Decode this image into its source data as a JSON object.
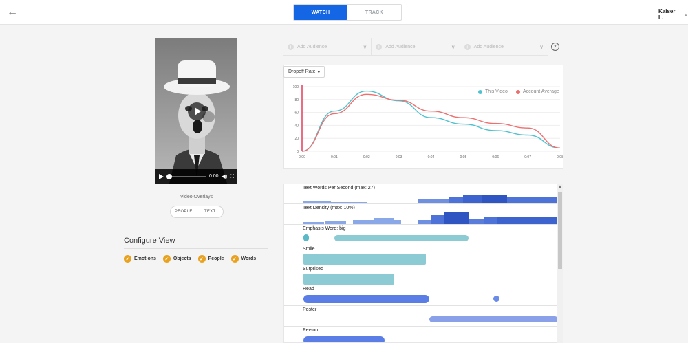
{
  "header": {
    "back_icon": "arrow-left-icon",
    "tabs": [
      "WATCH",
      "TRACK"
    ],
    "active_tab": "WATCH",
    "user_name": "Kaiser L."
  },
  "video": {
    "time": "0:00",
    "progress": 0
  },
  "overlays": {
    "label": "Video Overlays",
    "options": [
      "PEOPLE",
      "TEXT"
    ]
  },
  "configure": {
    "title": "Configure View",
    "options": [
      "Emotions",
      "Objects",
      "People",
      "Words"
    ]
  },
  "audience": {
    "placeholders": [
      "Add Audience",
      "Add Audience",
      "Add Audience"
    ]
  },
  "metric_select": "Dropoff Rate",
  "chart_data": {
    "type": "line",
    "x": [
      "0:00",
      "0:01",
      "0:02",
      "0:03",
      "0:04",
      "0:05",
      "0:06",
      "0:07",
      "0:08"
    ],
    "yticks": [
      0,
      20,
      40,
      60,
      80,
      100
    ],
    "ylim": [
      0,
      100
    ],
    "series": [
      {
        "name": "This Video",
        "color": "#4fc2d0",
        "values": [
          0,
          62,
          93,
          78,
          52,
          42,
          32,
          25,
          5
        ]
      },
      {
        "name": "Account Average",
        "color": "#ef6f6f",
        "values": [
          0,
          58,
          88,
          79,
          62,
          52,
          43,
          36,
          5
        ]
      }
    ],
    "legend_position": "top-right"
  },
  "timeline": {
    "tracks": [
      {
        "label": "Text Words Per Second (max: 27)",
        "kind": "histogram"
      },
      {
        "label": "Text Density (max: 10%)",
        "kind": "histogram"
      },
      {
        "label": "Emphasis Word: big",
        "kind": "teal"
      },
      {
        "label": "Smile",
        "kind": "teal-block"
      },
      {
        "label": "Surprised",
        "kind": "teal-block"
      },
      {
        "label": "Head",
        "kind": "blue"
      },
      {
        "label": "Poster",
        "kind": "blue-light"
      },
      {
        "label": "Person",
        "kind": "blue"
      }
    ]
  }
}
